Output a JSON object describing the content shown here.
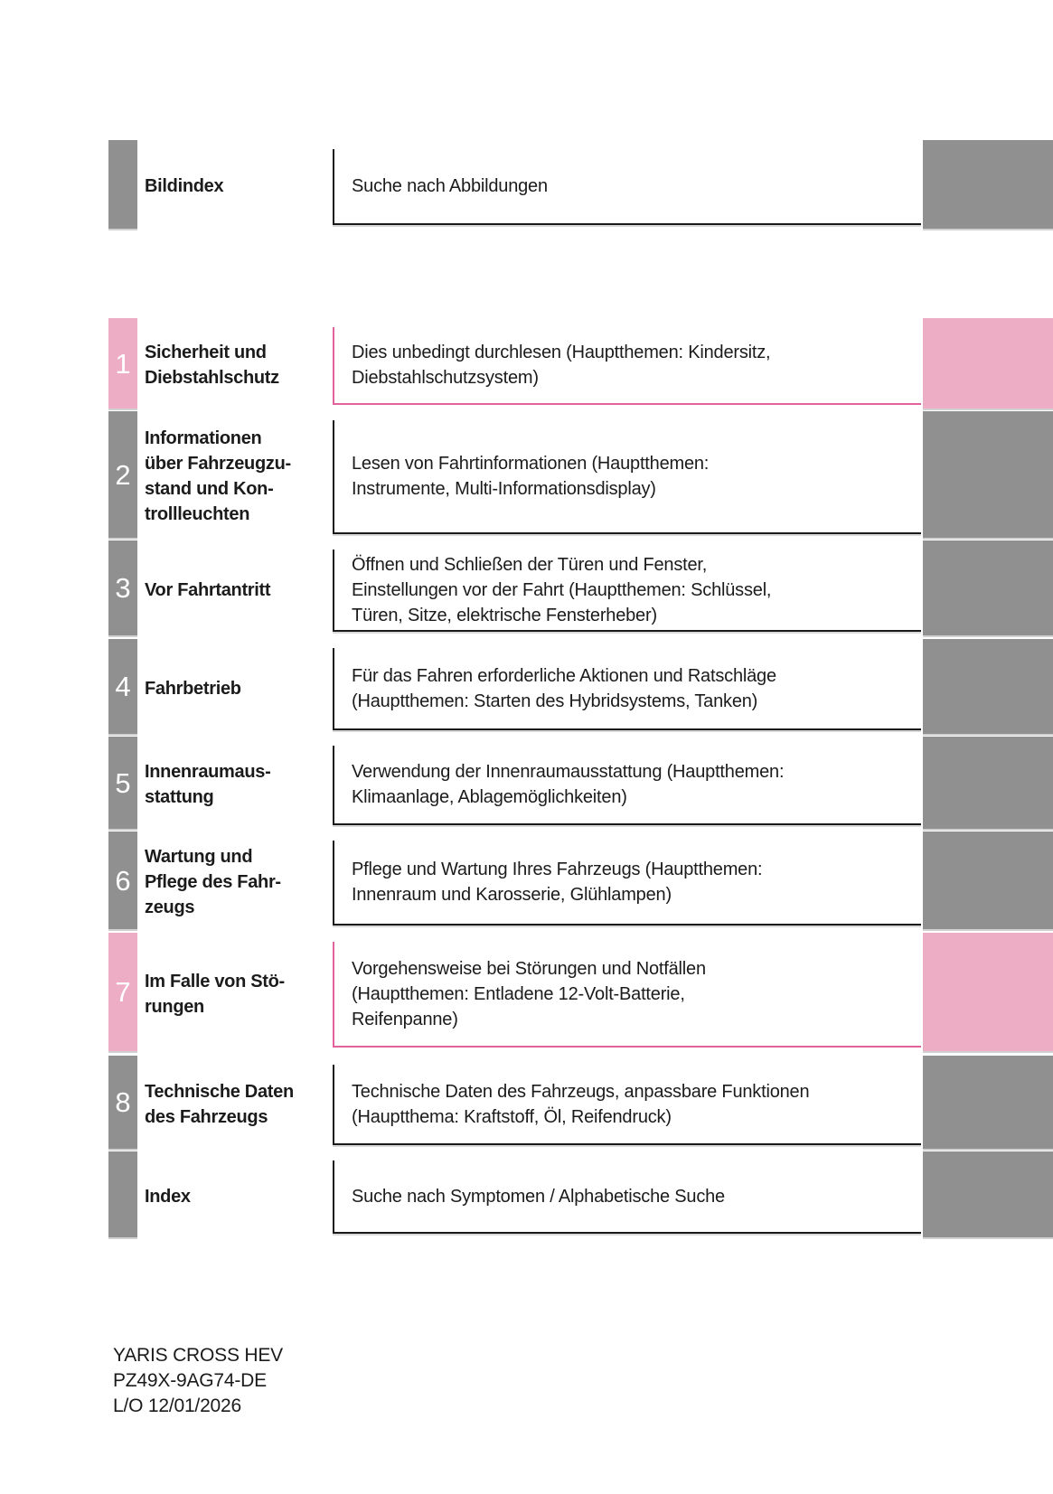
{
  "document": {
    "type": "owners-manual-table-of-contents",
    "language": "de"
  },
  "colors": {
    "tab_gray": "#909090",
    "tab_pink": "#edadc4",
    "pink_border": "#e2639c",
    "dark_border": "#1a1a1a",
    "text": "#1b1b1b",
    "number_text": "#ffffff"
  },
  "rows": [
    {
      "number": "",
      "title": "Bildindex",
      "description": "Suche nach Abbildungen",
      "accent": "gray"
    },
    {
      "number": "1",
      "title": "Sicherheit und\nDiebstahlschutz",
      "description": "Dies unbedingt durchlesen (Hauptthemen: Kindersitz,\nDiebstahlschutzsystem)",
      "accent": "pink"
    },
    {
      "number": "2",
      "title": "Informationen\nüber Fahrzeugzu-\nstand und Kon-\ntrollleuchten",
      "description": "Lesen von Fahrtinformationen (Hauptthemen:\nInstrumente, Multi-Informationsdisplay)",
      "accent": "gray"
    },
    {
      "number": "3",
      "title": "Vor Fahrtantritt",
      "description": "Öffnen und Schließen der Türen und Fenster,\nEinstellungen vor der Fahrt (Hauptthemen: Schlüssel,\nTüren, Sitze, elektrische Fensterheber)",
      "accent": "gray"
    },
    {
      "number": "4",
      "title": "Fahrbetrieb",
      "description": "Für das Fahren erforderliche Aktionen und Ratschläge\n(Hauptthemen: Starten des Hybridsystems, Tanken)",
      "accent": "gray"
    },
    {
      "number": "5",
      "title": "Innenraumaus-\nstattung",
      "description": "Verwendung der Innenraumausstattung (Hauptthemen:\nKlimaanlage, Ablagemöglichkeiten)",
      "accent": "gray"
    },
    {
      "number": "6",
      "title": "Wartung und\nPflege des Fahr-\nzeugs",
      "description": "Pflege und Wartung Ihres Fahrzeugs (Hauptthemen:\nInnenraum und Karosserie, Glühlampen)",
      "accent": "gray"
    },
    {
      "number": "7",
      "title": "Im Falle von Stö-\nrungen",
      "description": "Vorgehensweise bei Störungen und Notfällen\n(Hauptthemen: Entladene 12-Volt-Batterie,\nReifenpanne)",
      "accent": "pink"
    },
    {
      "number": "8",
      "title": "Technische Daten\ndes Fahrzeugs",
      "description": "Technische Daten des Fahrzeugs, anpassbare Funktionen\n(Hauptthema: Kraftstoff, Öl, Reifendruck)",
      "accent": "gray"
    },
    {
      "number": "",
      "title": "Index",
      "description": "Suche nach Symptomen / Alphabetische Suche",
      "accent": "gray"
    }
  ],
  "footer": {
    "line1": "YARIS CROSS HEV",
    "line2": "PZ49X-9AG74-DE",
    "line3": "L/O 12/01/2026"
  }
}
